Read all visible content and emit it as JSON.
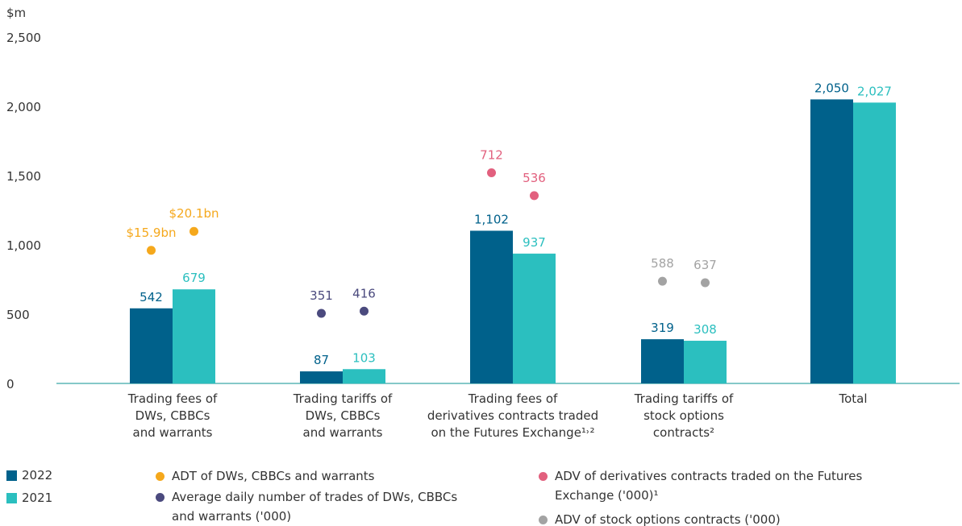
{
  "chart_data": {
    "type": "bar",
    "y_label": "$m",
    "categories": [
      "Trading fees of\nDWs, CBBCs\nand warrants",
      "Trading tariffs of\nDWs, CBBCs\nand warrants",
      "Trading fees of\nderivatives contracts traded\non the Futures Exchange¹˒²",
      "Trading tariffs of\nstock options\ncontracts²",
      "Total"
    ],
    "series": [
      {
        "name": "2022",
        "color": "#00618b",
        "values": [
          542,
          87,
          1102,
          319,
          2050
        ],
        "value_labels": [
          "542",
          "87",
          "1,102",
          "319",
          "2,050"
        ]
      },
      {
        "name": "2021",
        "color": "#2bbfbf",
        "values": [
          679,
          103,
          937,
          308,
          2027
        ],
        "value_labels": [
          "679",
          "103",
          "937",
          "308",
          "2,027"
        ]
      }
    ],
    "indicators": [
      {
        "name": "ADT of DWs, CBBCs and warrants",
        "color": "#f5a81c",
        "values": [
          15.9,
          20.1
        ],
        "value_labels": [
          "$15.9bn",
          "$20.1bn"
        ]
      },
      {
        "name": "Average daily number of trades of DWs, CBBCs and warrants ('000)",
        "color": "#4b4a7e",
        "values": [
          351,
          416
        ]
      },
      {
        "name": "ADV of derivatives contracts traded on the Futures Exchange ('000)¹",
        "color": "#e2607e",
        "values": [
          712,
          536
        ]
      },
      {
        "name": "ADV of stock options contracts ('000)",
        "color": "#a3a3a3",
        "values": [
          588,
          637
        ]
      }
    ],
    "ylim": [
      0,
      2500
    ],
    "yticks": [
      0,
      500,
      {
        "value": 1000,
        "label": "1,000"
      },
      {
        "value": 1500,
        "label": "1,500"
      },
      {
        "value": 2000,
        "label": "2,000"
      },
      {
        "value": 2500,
        "label": "2,500"
      }
    ]
  }
}
